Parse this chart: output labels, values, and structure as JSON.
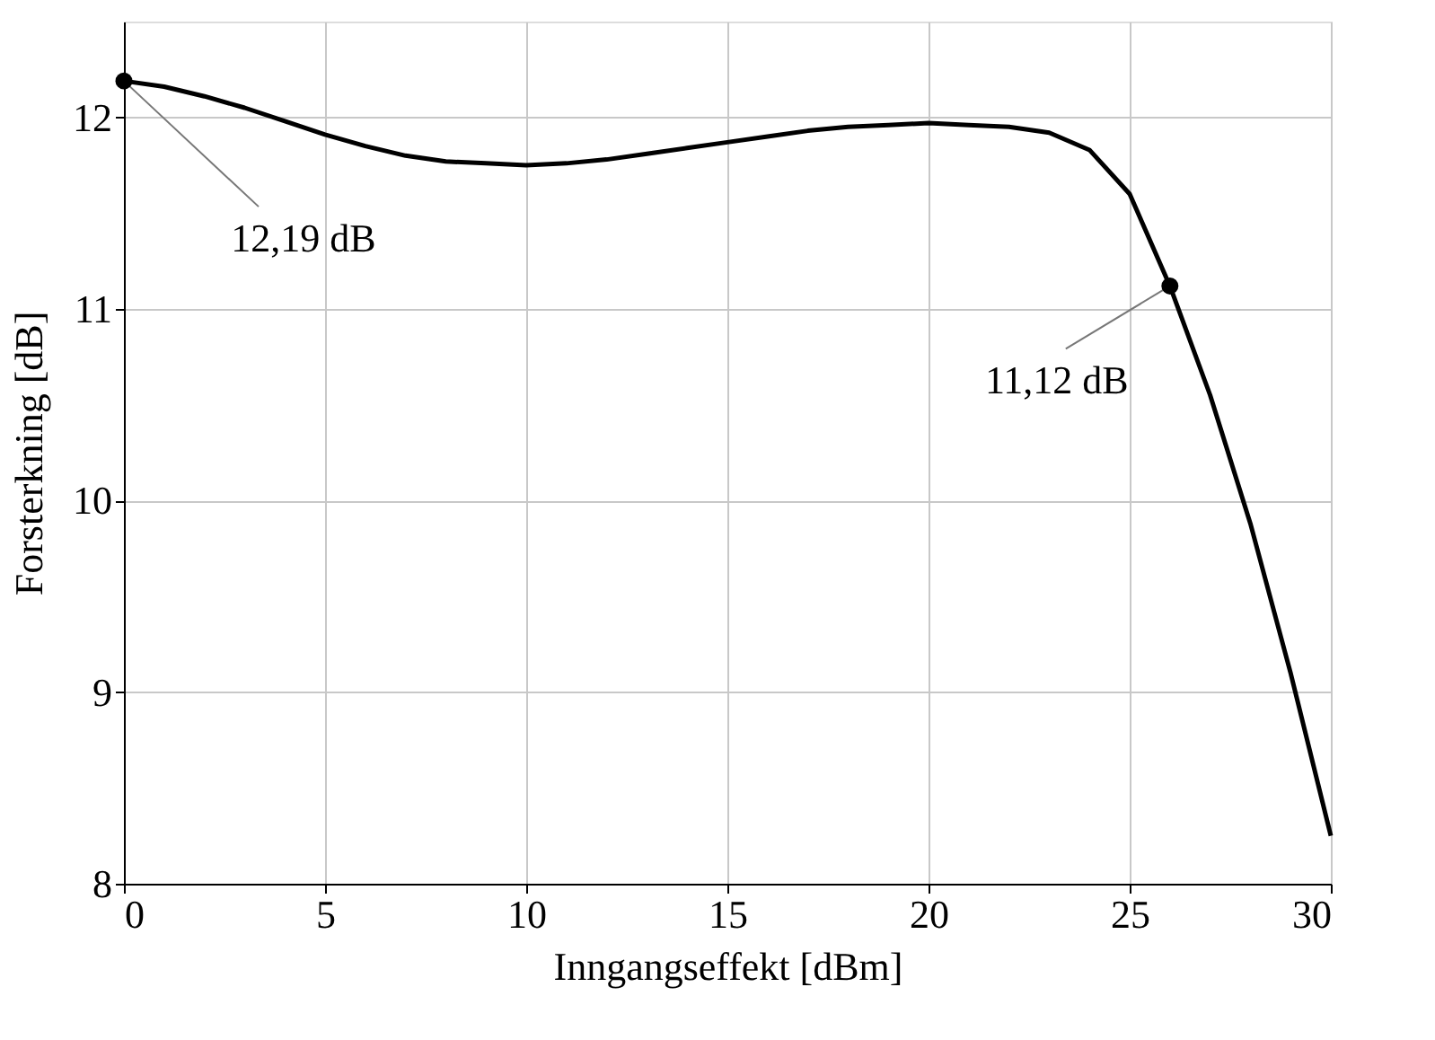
{
  "chart_data": {
    "type": "line",
    "xlabel": "Inngangseffekt [dBm]",
    "ylabel": "Forsterkning [dB]",
    "x": [
      0,
      1,
      2,
      3,
      4,
      5,
      6,
      7,
      8,
      9,
      10,
      11,
      12,
      13,
      14,
      15,
      16,
      17,
      18,
      19,
      20,
      21,
      22,
      23,
      24,
      25,
      26,
      27,
      28,
      29,
      30
    ],
    "series": [
      {
        "color": "#000000",
        "values": [
          12.19,
          12.16,
          12.11,
          12.05,
          11.98,
          11.91,
          11.85,
          11.8,
          11.77,
          11.76,
          11.75,
          11.76,
          11.78,
          11.81,
          11.84,
          11.87,
          11.9,
          11.93,
          11.95,
          11.96,
          11.97,
          11.96,
          11.95,
          11.92,
          11.83,
          11.6,
          11.12,
          10.55,
          9.88,
          9.1,
          8.25
        ]
      }
    ],
    "xlim": [
      0,
      30
    ],
    "ylim": [
      8,
      12.5
    ],
    "xticks": [
      0,
      5,
      10,
      15,
      20,
      25,
      30
    ],
    "yticks": [
      8,
      9,
      10,
      11,
      12
    ],
    "grid": true,
    "marker": "none",
    "line_style": "solid",
    "annotations": [
      {
        "text": "12,19 dB",
        "x": 0,
        "y": 12.19
      },
      {
        "text": "11,12 dB",
        "x": 26,
        "y": 11.12
      }
    ]
  }
}
